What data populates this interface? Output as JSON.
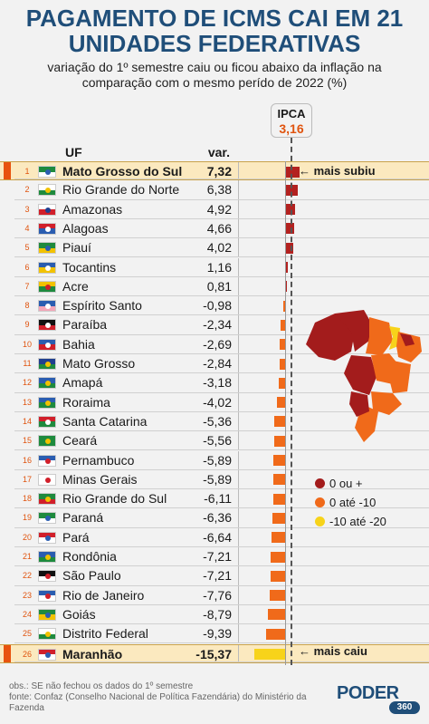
{
  "title_line1": "PAGAMENTO DE ICMS CAI EM 21",
  "title_line2": "UNIDADES FEDERATIVAS",
  "subtitle_line1": "variação do 1º semestre caiu ou ficou abaixo da inflação na",
  "subtitle_line2": "comparação com o mesmo perído de 2022 (%)",
  "ipca": {
    "label": "IPCA",
    "value_text": "3,16",
    "value": 3.16
  },
  "header": {
    "uf": "UF",
    "var": "var. %"
  },
  "notes": {
    "top": "mais subiu",
    "bottom": "mais caiu",
    "arrow": "←"
  },
  "legend": [
    {
      "label": "0 ou +",
      "color": "#a31c1c"
    },
    {
      "label": "0 até -10",
      "color": "#f06a1a"
    },
    {
      "label": "-10 até -20",
      "color": "#f7d31a"
    }
  ],
  "footnote_line1": "obs.: SE não fechou os dados do 1º semestre",
  "footnote_line2": "fonte: Confaz (Conselho Nacional de Política Fazendária) do Ministério da",
  "footnote_line3": "Fazenda",
  "logo": {
    "text": "PODER",
    "badge": "360"
  },
  "colors": {
    "positive": "#b3211f",
    "negative": "#f06a1a",
    "lowest": "#f7d31a",
    "title": "#1f4e79",
    "accent": "#e0540f"
  },
  "chart_data": {
    "type": "bar",
    "orientation": "horizontal",
    "x_range": [
      -15.37,
      7.32
    ],
    "reference_line": {
      "label": "IPCA",
      "value": 3.16
    },
    "rows": [
      {
        "rank": "1",
        "uf": "Mato Grosso do Sul",
        "value_text": "7,32",
        "value": 7.32,
        "flag": [
          "#1e8a3e",
          "#ffffff",
          "#2a5db0"
        ]
      },
      {
        "rank": "2",
        "uf": "Rio Grande do Norte",
        "value_text": "6,38",
        "value": 6.38,
        "flag": [
          "#ffffff",
          "#1e8a3e",
          "#f2c200"
        ]
      },
      {
        "rank": "3",
        "uf": "Amazonas",
        "value_text": "4,92",
        "value": 4.92,
        "flag": [
          "#ffffff",
          "#d11f2a",
          "#1f3f8f"
        ]
      },
      {
        "rank": "4",
        "uf": "Alagoas",
        "value_text": "4,66",
        "value": 4.66,
        "flag": [
          "#d11f2a",
          "#2a5db0",
          "#ffffff"
        ]
      },
      {
        "rank": "5",
        "uf": "Piauí",
        "value_text": "4,02",
        "value": 4.02,
        "flag": [
          "#1e8a3e",
          "#f2c200",
          "#2a5db0"
        ]
      },
      {
        "rank": "6",
        "uf": "Tocantins",
        "value_text": "1,16",
        "value": 1.16,
        "flag": [
          "#2a5db0",
          "#f2c200",
          "#ffffff"
        ]
      },
      {
        "rank": "7",
        "uf": "Acre",
        "value_text": "0,81",
        "value": 0.81,
        "flag": [
          "#f2c200",
          "#1e8a3e",
          "#d11f2a"
        ]
      },
      {
        "rank": "8",
        "uf": "Espírito Santo",
        "value_text": "-0,98",
        "value": -0.98,
        "flag": [
          "#2a5db0",
          "#f4a6b8",
          "#ffffff"
        ]
      },
      {
        "rank": "9",
        "uf": "Paraíba",
        "value_text": "-2,34",
        "value": -2.34,
        "flag": [
          "#111111",
          "#d11f2a",
          "#ffffff"
        ]
      },
      {
        "rank": "10",
        "uf": "Bahia",
        "value_text": "-2,69",
        "value": -2.69,
        "flag": [
          "#2a5db0",
          "#d11f2a",
          "#ffffff"
        ]
      },
      {
        "rank": "11",
        "uf": "Mato Grosso",
        "value_text": "-2,84",
        "value": -2.84,
        "flag": [
          "#1f3f8f",
          "#1e8a3e",
          "#f2c200"
        ]
      },
      {
        "rank": "12",
        "uf": "Amapá",
        "value_text": "-3,18",
        "value": -3.18,
        "flag": [
          "#2a5db0",
          "#1e8a3e",
          "#f2c200"
        ]
      },
      {
        "rank": "13",
        "uf": "Roraima",
        "value_text": "-4,02",
        "value": -4.02,
        "flag": [
          "#2a5db0",
          "#1e8a3e",
          "#f2c200"
        ]
      },
      {
        "rank": "14",
        "uf": "Santa Catarina",
        "value_text": "-5,36",
        "value": -5.36,
        "flag": [
          "#d11f2a",
          "#1e8a3e",
          "#ffffff"
        ]
      },
      {
        "rank": "15",
        "uf": "Ceará",
        "value_text": "-5,56",
        "value": -5.56,
        "flag": [
          "#1e8a3e",
          "#1e8a3e",
          "#f2c200"
        ]
      },
      {
        "rank": "16",
        "uf": "Pernambuco",
        "value_text": "-5,89",
        "value": -5.89,
        "flag": [
          "#2a5db0",
          "#ffffff",
          "#d11f2a"
        ]
      },
      {
        "rank": "17",
        "uf": "Minas Gerais",
        "value_text": "-5,89",
        "value": -5.89,
        "flag": [
          "#ffffff",
          "#ffffff",
          "#d11f2a"
        ]
      },
      {
        "rank": "18",
        "uf": "Rio Grande do Sul",
        "value_text": "-6,11",
        "value": -6.11,
        "flag": [
          "#1e8a3e",
          "#d11f2a",
          "#f2c200"
        ]
      },
      {
        "rank": "19",
        "uf": "Paraná",
        "value_text": "-6,36",
        "value": -6.36,
        "flag": [
          "#1e8a3e",
          "#ffffff",
          "#2a5db0"
        ]
      },
      {
        "rank": "20",
        "uf": "Pará",
        "value_text": "-6,64",
        "value": -6.64,
        "flag": [
          "#d11f2a",
          "#ffffff",
          "#2a5db0"
        ]
      },
      {
        "rank": "21",
        "uf": "Rondônia",
        "value_text": "-7,21",
        "value": -7.21,
        "flag": [
          "#2a5db0",
          "#1e8a3e",
          "#f2c200"
        ]
      },
      {
        "rank": "22",
        "uf": "São Paulo",
        "value_text": "-7,21",
        "value": -7.21,
        "flag": [
          "#111111",
          "#ffffff",
          "#d11f2a"
        ]
      },
      {
        "rank": "23",
        "uf": "Rio de Janeiro",
        "value_text": "-7,76",
        "value": -7.76,
        "flag": [
          "#2a5db0",
          "#ffffff",
          "#d11f2a"
        ]
      },
      {
        "rank": "24",
        "uf": "Goiás",
        "value_text": "-8,79",
        "value": -8.79,
        "flag": [
          "#1e8a3e",
          "#f2c200",
          "#2a5db0"
        ]
      },
      {
        "rank": "25",
        "uf": "Distrito Federal",
        "value_text": "-9,39",
        "value": -9.39,
        "flag": [
          "#ffffff",
          "#1e8a3e",
          "#f2c200"
        ]
      },
      {
        "rank": "26",
        "uf": "Maranhão",
        "value_text": "-15,37",
        "value": -15.37,
        "flag": [
          "#d11f2a",
          "#ffffff",
          "#2a5db0"
        ]
      }
    ]
  }
}
